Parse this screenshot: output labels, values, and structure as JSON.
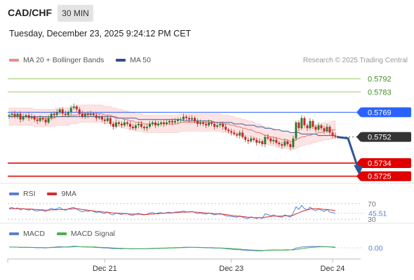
{
  "header": {
    "pair": "CAD/CHF",
    "timeframe": "30 MIN",
    "datetime": "Tuesday, December 23, 2025 9:24:12 PM CET"
  },
  "legend": {
    "ma20_label": "MA 20 + Bollinger Bands",
    "ma50_label": "MA 50",
    "credit": "Research © 2025 Trading Central"
  },
  "colors": {
    "up": "#2e7d32",
    "down": "#c62828",
    "ma20": "#e57373",
    "ma50": "#3f5f9a",
    "bands_fill": "#fde3e3",
    "resistance": "#9ccc65",
    "support": "#e53935",
    "pivot": "#2962ff",
    "last": "#333333",
    "rsi": "#5b7fd6",
    "rsi_ma": "#d32f2f",
    "macd": "#5b7fd6",
    "macd_signal": "#4caf50",
    "arrow": "#2f5597"
  },
  "chart_data": [
    {
      "type": "candlestick",
      "title": "CAD/CHF",
      "ylim": [
        0.5721,
        0.58
      ],
      "levels": [
        {
          "value": 0.5792,
          "label": "0.5792",
          "kind": "resistance"
        },
        {
          "value": 0.5783,
          "label": "0.5783",
          "kind": "resistance"
        },
        {
          "value": 0.5769,
          "label": "0.5769",
          "kind": "pivot"
        },
        {
          "value": 0.5752,
          "label": "0.5752",
          "kind": "last"
        },
        {
          "value": 0.5734,
          "label": "0.5734",
          "kind": "support"
        },
        {
          "value": 0.5725,
          "label": "0.5725",
          "kind": "support"
        }
      ],
      "close": [
        0.5767,
        0.5768,
        0.5766,
        0.5768,
        0.5764,
        0.5766,
        0.5767,
        0.5765,
        0.5766,
        0.5764,
        0.5763,
        0.5765,
        0.5764,
        0.5762,
        0.5765,
        0.5768,
        0.5767,
        0.5769,
        0.5771,
        0.5768,
        0.5767,
        0.5769,
        0.5772,
        0.5773,
        0.5771,
        0.5768,
        0.5766,
        0.5768,
        0.5767,
        0.5768,
        0.5767,
        0.5765,
        0.5766,
        0.5764,
        0.5763,
        0.5765,
        0.5761,
        0.5759,
        0.5762,
        0.5761,
        0.576,
        0.5762,
        0.5761,
        0.5759,
        0.5758,
        0.576,
        0.5761,
        0.5759,
        0.5758,
        0.5759,
        0.5761,
        0.5762,
        0.576,
        0.5761,
        0.5762,
        0.5761,
        0.5762,
        0.5763,
        0.5762,
        0.5763,
        0.5764,
        0.5764,
        0.5766,
        0.5765,
        0.5764,
        0.5765,
        0.5763,
        0.5761,
        0.5762,
        0.5761,
        0.576,
        0.5762,
        0.5761,
        0.5759,
        0.576,
        0.5761,
        0.5759,
        0.5757,
        0.5756,
        0.5755,
        0.5754,
        0.5753,
        0.5755,
        0.5752,
        0.575,
        0.5749,
        0.5751,
        0.575,
        0.5748,
        0.5749,
        0.5747,
        0.5752,
        0.5751,
        0.5749,
        0.575,
        0.5748,
        0.5747,
        0.5746,
        0.5749,
        0.5747,
        0.5745,
        0.5751,
        0.5762,
        0.5758,
        0.5765,
        0.576,
        0.5758,
        0.5763,
        0.5759,
        0.5757,
        0.576,
        0.5758,
        0.5756,
        0.5759,
        0.5755,
        0.5753,
        0.5752
      ],
      "ma20": [
        0.5766,
        0.5766,
        0.5766,
        0.5766,
        0.5766,
        0.5766,
        0.5766,
        0.5766,
        0.5766,
        0.5765,
        0.5765,
        0.5765,
        0.5765,
        0.5765,
        0.5765,
        0.5765,
        0.5765,
        0.5766,
        0.5766,
        0.5766,
        0.5766,
        0.5766,
        0.5767,
        0.5767,
        0.5767,
        0.5768,
        0.5768,
        0.5768,
        0.5768,
        0.5768,
        0.5768,
        0.5768,
        0.5768,
        0.5768,
        0.5767,
        0.5767,
        0.5767,
        0.5766,
        0.5766,
        0.5765,
        0.5765,
        0.5764,
        0.5764,
        0.5763,
        0.5763,
        0.5762,
        0.5762,
        0.5762,
        0.5761,
        0.5761,
        0.5761,
        0.5761,
        0.5761,
        0.5761,
        0.5761,
        0.5761,
        0.5761,
        0.5761,
        0.5761,
        0.5761,
        0.5761,
        0.5762,
        0.5762,
        0.5762,
        0.5762,
        0.5762,
        0.5762,
        0.5762,
        0.5762,
        0.5762,
        0.5762,
        0.5762,
        0.5762,
        0.5762,
        0.5762,
        0.5762,
        0.5761,
        0.5761,
        0.5761,
        0.576,
        0.576,
        0.5759,
        0.5759,
        0.5758,
        0.5758,
        0.5757,
        0.5757,
        0.5756,
        0.5755,
        0.5755,
        0.5754,
        0.5753,
        0.5753,
        0.5752,
        0.5752,
        0.5751,
        0.5751,
        0.575,
        0.575,
        0.575,
        0.5749,
        0.5749,
        0.575,
        0.5751,
        0.5752,
        0.5752,
        0.5753,
        0.5753,
        0.5754,
        0.5754,
        0.5755,
        0.5755,
        0.5756,
        0.5756,
        0.5756,
        0.5757,
        0.5757
      ],
      "ma50": [
        0.5766,
        0.5766,
        0.5766,
        0.5766,
        0.5766,
        0.5766,
        0.5766,
        0.5766,
        0.5766,
        0.5766,
        0.5766,
        0.5766,
        0.5766,
        0.5766,
        0.5766,
        0.5766,
        0.5766,
        0.5766,
        0.5766,
        0.5766,
        0.5766,
        0.5766,
        0.5766,
        0.5766,
        0.5766,
        0.5766,
        0.5766,
        0.5766,
        0.5766,
        0.5766,
        0.5766,
        0.5766,
        0.5766,
        0.5766,
        0.5766,
        0.5766,
        0.5766,
        0.5766,
        0.5765,
        0.5765,
        0.5765,
        0.5765,
        0.5765,
        0.5765,
        0.5765,
        0.5765,
        0.5764,
        0.5764,
        0.5764,
        0.5764,
        0.5764,
        0.5764,
        0.5764,
        0.5764,
        0.5764,
        0.5764,
        0.5764,
        0.5764,
        0.5764,
        0.5764,
        0.5764,
        0.5764,
        0.5763,
        0.5763,
        0.5763,
        0.5763,
        0.5763,
        0.5763,
        0.5763,
        0.5763,
        0.5763,
        0.5763,
        0.5763,
        0.5762,
        0.5762,
        0.5762,
        0.5762,
        0.5762,
        0.5762,
        0.5762,
        0.5761,
        0.5761,
        0.5761,
        0.5761,
        0.576,
        0.576,
        0.576,
        0.576,
        0.5759,
        0.5759,
        0.5759,
        0.5758,
        0.5758,
        0.5758,
        0.5757,
        0.5757,
        0.5757,
        0.5756,
        0.5756,
        0.5756,
        0.5755,
        0.5755,
        0.5755,
        0.5755,
        0.5754,
        0.5754,
        0.5754,
        0.5754,
        0.5754,
        0.5754,
        0.5753,
        0.5753,
        0.5753,
        0.5753,
        0.5753,
        0.5753,
        0.5753
      ],
      "band_halfwidth": 0.0006,
      "projection": {
        "from": 0.5752,
        "to": 0.5727
      }
    },
    {
      "type": "line",
      "title": "RSI",
      "series": [
        {
          "name": "RSI"
        },
        {
          "name": "9MA"
        }
      ],
      "ylim": [
        25,
        75
      ],
      "levels": [
        {
          "value": 70,
          "label": "70"
        },
        {
          "value": 30,
          "label": "30"
        }
      ],
      "current_label": "45.51",
      "rsi": [
        58,
        60,
        57,
        59,
        54,
        57,
        55,
        53,
        56,
        52,
        51,
        53,
        52,
        50,
        54,
        58,
        55,
        57,
        60,
        55,
        53,
        56,
        59,
        60,
        56,
        52,
        49,
        52,
        50,
        52,
        50,
        47,
        49,
        46,
        45,
        48,
        43,
        41,
        46,
        44,
        42,
        45,
        44,
        41,
        40,
        43,
        45,
        42,
        41,
        43,
        46,
        47,
        44,
        46,
        47,
        45,
        47,
        48,
        46,
        48,
        49,
        49,
        51,
        49,
        48,
        50,
        47,
        44,
        46,
        44,
        43,
        46,
        44,
        41,
        43,
        45,
        42,
        39,
        38,
        37,
        36,
        35,
        39,
        35,
        33,
        32,
        36,
        34,
        32,
        35,
        32,
        44,
        42,
        39,
        41,
        38,
        36,
        35,
        41,
        38,
        35,
        46,
        62,
        55,
        65,
        57,
        54,
        61,
        55,
        52,
        56,
        53,
        50,
        55,
        48,
        47,
        45.5
      ],
      "rsi_ma": [
        57,
        57,
        57,
        57,
        57,
        57,
        56,
        56,
        56,
        55,
        55,
        54,
        54,
        53,
        53,
        54,
        54,
        54,
        55,
        55,
        55,
        56,
        56,
        57,
        57,
        56,
        55,
        54,
        53,
        52,
        51,
        50,
        50,
        49,
        48,
        48,
        47,
        46,
        46,
        45,
        45,
        44,
        44,
        43,
        43,
        43,
        43,
        43,
        42,
        42,
        43,
        43,
        44,
        44,
        45,
        45,
        46,
        46,
        46,
        47,
        47,
        48,
        48,
        48,
        49,
        49,
        48,
        48,
        47,
        47,
        46,
        45,
        45,
        44,
        44,
        43,
        43,
        42,
        41,
        40,
        39,
        38,
        37,
        37,
        36,
        35,
        35,
        34,
        34,
        34,
        34,
        35,
        36,
        37,
        38,
        38,
        38,
        38,
        39,
        39,
        39,
        40,
        44,
        46,
        50,
        52,
        54,
        56,
        57,
        57,
        57,
        56,
        55,
        55,
        54,
        53,
        52
      ]
    },
    {
      "type": "line",
      "title": "MACD",
      "series": [
        {
          "name": "MACD"
        },
        {
          "name": "MACD Signal"
        }
      ],
      "ylim": [
        -0.0006,
        0.0006
      ],
      "current_label": "0.00",
      "macd": [
        5e-05,
        6e-05,
        4e-05,
        5e-05,
        2e-05,
        3e-05,
        4e-05,
        2e-05,
        3e-05,
        1e-05,
        0.0,
        1e-05,
        0.0,
        -1e-05,
        1e-05,
        4e-05,
        4e-05,
        6e-05,
        8e-05,
        7e-05,
        6e-05,
        7e-05,
        9e-05,
        0.00011,
        0.0001,
        8e-05,
        6e-05,
        6e-05,
        5e-05,
        5e-05,
        4e-05,
        2e-05,
        2e-05,
        0.0,
        -1e-05,
        -1e-05,
        -4e-05,
        -6e-05,
        -5e-05,
        -6e-05,
        -7e-05,
        -6e-05,
        -6e-05,
        -7e-05,
        -8e-05,
        -7e-05,
        -6e-05,
        -7e-05,
        -7e-05,
        -6e-05,
        -5e-05,
        -4e-05,
        -4e-05,
        -3e-05,
        -2e-05,
        -2e-05,
        -1e-05,
        0.0,
        0.0,
        1e-05,
        2e-05,
        2e-05,
        4e-05,
        4e-05,
        4e-05,
        4e-05,
        3e-05,
        2e-05,
        2e-05,
        1e-05,
        0.0,
        0.0,
        -1e-05,
        -2e-05,
        -2e-05,
        -2e-05,
        -4e-05,
        -6e-05,
        -8e-05,
        -0.0001,
        -0.00012,
        -0.00014,
        -0.00014,
        -0.00016,
        -0.00018,
        -0.0002,
        -0.00019,
        -0.0002,
        -0.00021,
        -0.00021,
        -0.00022,
        -0.00018,
        -0.00016,
        -0.00016,
        -0.00015,
        -0.00015,
        -0.00016,
        -0.00016,
        -0.00014,
        -0.00014,
        -0.00015,
        -0.00011,
        -2e-05,
        0.0,
        6e-05,
        7e-05,
        7e-05,
        0.0001,
        0.0001,
        9e-05,
        0.0001,
        9e-05,
        8e-05,
        8e-05,
        6e-05,
        4e-05,
        2e-05
      ],
      "signal": [
        5e-05,
        5e-05,
        5e-05,
        5e-05,
        4e-05,
        4e-05,
        4e-05,
        4e-05,
        3e-05,
        3e-05,
        2e-05,
        2e-05,
        2e-05,
        1e-05,
        1e-05,
        2e-05,
        2e-05,
        3e-05,
        4e-05,
        5e-05,
        5e-05,
        5e-05,
        6e-05,
        7e-05,
        8e-05,
        8e-05,
        7e-05,
        7e-05,
        7e-05,
        6e-05,
        6e-05,
        5e-05,
        4e-05,
        3e-05,
        2e-05,
        2e-05,
        0.0,
        -1e-05,
        -2e-05,
        -3e-05,
        -4e-05,
        -5e-05,
        -5e-05,
        -6e-05,
        -6e-05,
        -7e-05,
        -7e-05,
        -7e-05,
        -7e-05,
        -7e-05,
        -6e-05,
        -6e-05,
        -5e-05,
        -5e-05,
        -4e-05,
        -3e-05,
        -3e-05,
        -2e-05,
        -1e-05,
        -1e-05,
        0.0,
        1e-05,
        1e-05,
        2e-05,
        3e-05,
        3e-05,
        3e-05,
        3e-05,
        3e-05,
        2e-05,
        2e-05,
        1e-05,
        1e-05,
        0.0,
        -1e-05,
        -1e-05,
        -2e-05,
        -3e-05,
        -4e-05,
        -5e-05,
        -6e-05,
        -8e-05,
        -9e-05,
        -0.00011,
        -0.00012,
        -0.00014,
        -0.00015,
        -0.00016,
        -0.00017,
        -0.00018,
        -0.00019,
        -0.00019,
        -0.00018,
        -0.00018,
        -0.00017,
        -0.00017,
        -0.00017,
        -0.00016,
        -0.00016,
        -0.00016,
        -0.00015,
        -0.00015,
        -0.00012,
        -0.0001,
        -6e-05,
        -3e-05,
        -1e-05,
        2e-05,
        4e-05,
        5e-05,
        6e-05,
        7e-05,
        7e-05,
        7e-05,
        7e-05,
        6e-05,
        5e-05
      ]
    }
  ],
  "x_axis": {
    "ticks": [
      {
        "index": 34,
        "label": "Dec 21"
      },
      {
        "index": 79,
        "label": "Dec 23"
      },
      {
        "index": 115,
        "label": "Dec 24"
      }
    ]
  }
}
